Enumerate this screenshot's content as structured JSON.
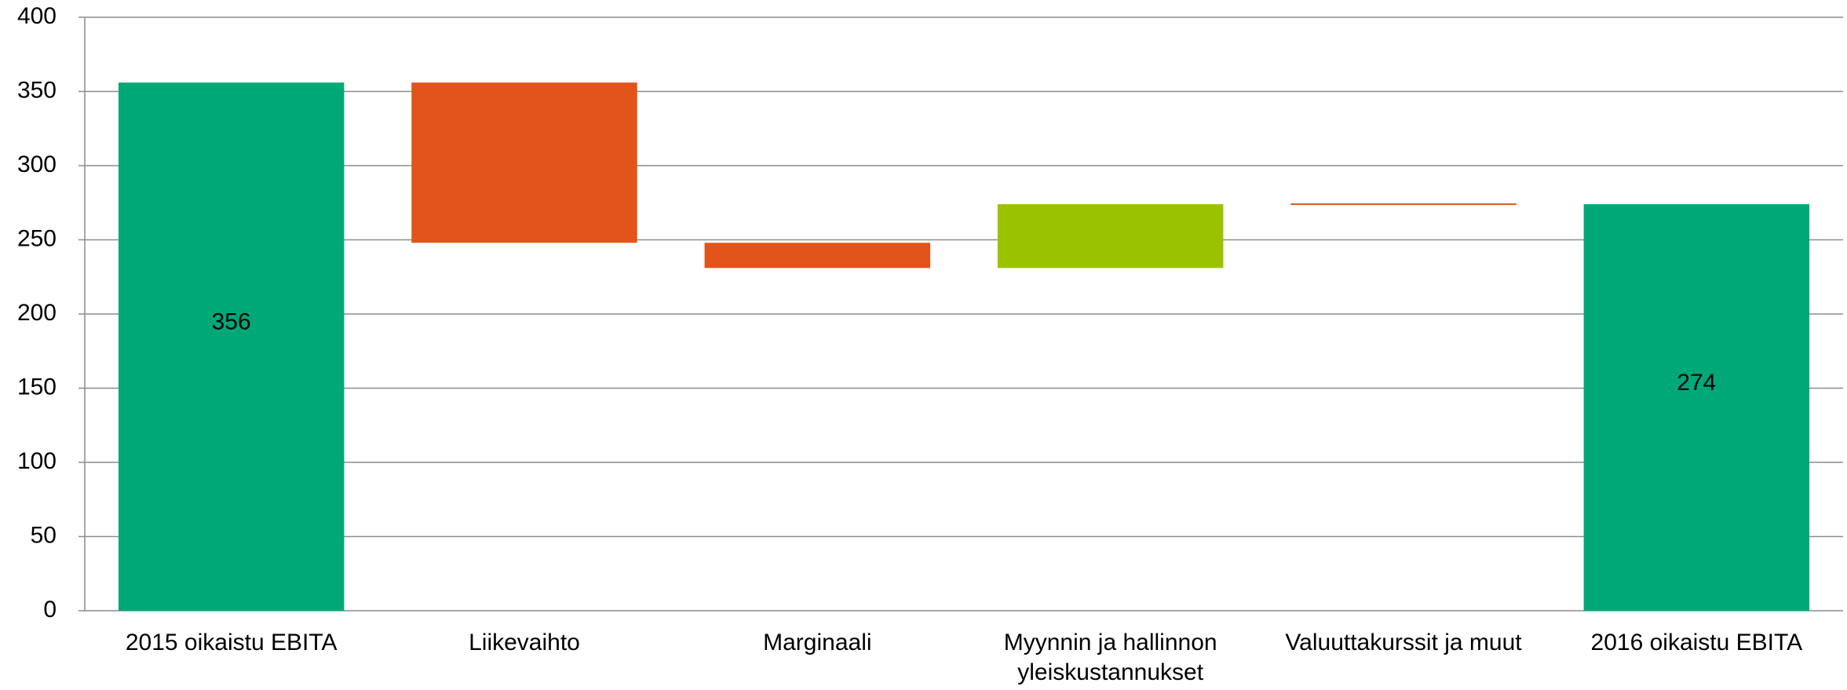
{
  "chart_data": {
    "type": "waterfall",
    "categories": [
      "2015 oikaistu EBITA",
      "Liikevaihto",
      "Marginaali",
      "Myynnin ja hallinnon yleiskustannukset",
      "Valuuttakurssit ja muut",
      "2016 oikaistu EBITA"
    ],
    "values": [
      356,
      -108,
      -17,
      43,
      0,
      274
    ],
    "totals": [
      true,
      false,
      false,
      false,
      false,
      true
    ],
    "colors": {
      "total": "#00a878",
      "decrease": "#e2541a",
      "increase": "#9ac200"
    },
    "data_labels": [
      true,
      false,
      false,
      false,
      false,
      true
    ],
    "ylim": [
      0,
      400
    ],
    "yticks": [
      0,
      50,
      100,
      150,
      200,
      250,
      300,
      350,
      400
    ],
    "grid": true
  }
}
